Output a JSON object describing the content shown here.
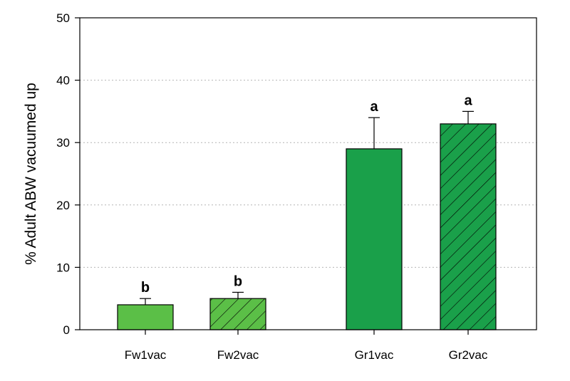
{
  "chart_data": {
    "type": "bar",
    "title": "",
    "xlabel": "",
    "ylabel": "% Adult ABW vacuumed up",
    "ylim": [
      0,
      50
    ],
    "yticks": [
      0,
      10,
      20,
      30,
      40,
      50
    ],
    "grid": "horizontal dotted",
    "categories": [
      "Fw1vac",
      "Fw2vac",
      "Gr1vac",
      "Gr2vac"
    ],
    "values": [
      4,
      5,
      29,
      33
    ],
    "errors": [
      1,
      1,
      5,
      2
    ],
    "significance": [
      "b",
      "b",
      "a",
      "a"
    ],
    "colors": [
      "#5bbf47",
      "#5bbf47",
      "#1aa04a",
      "#1aa04a"
    ],
    "hatched": [
      false,
      true,
      false,
      true
    ]
  }
}
